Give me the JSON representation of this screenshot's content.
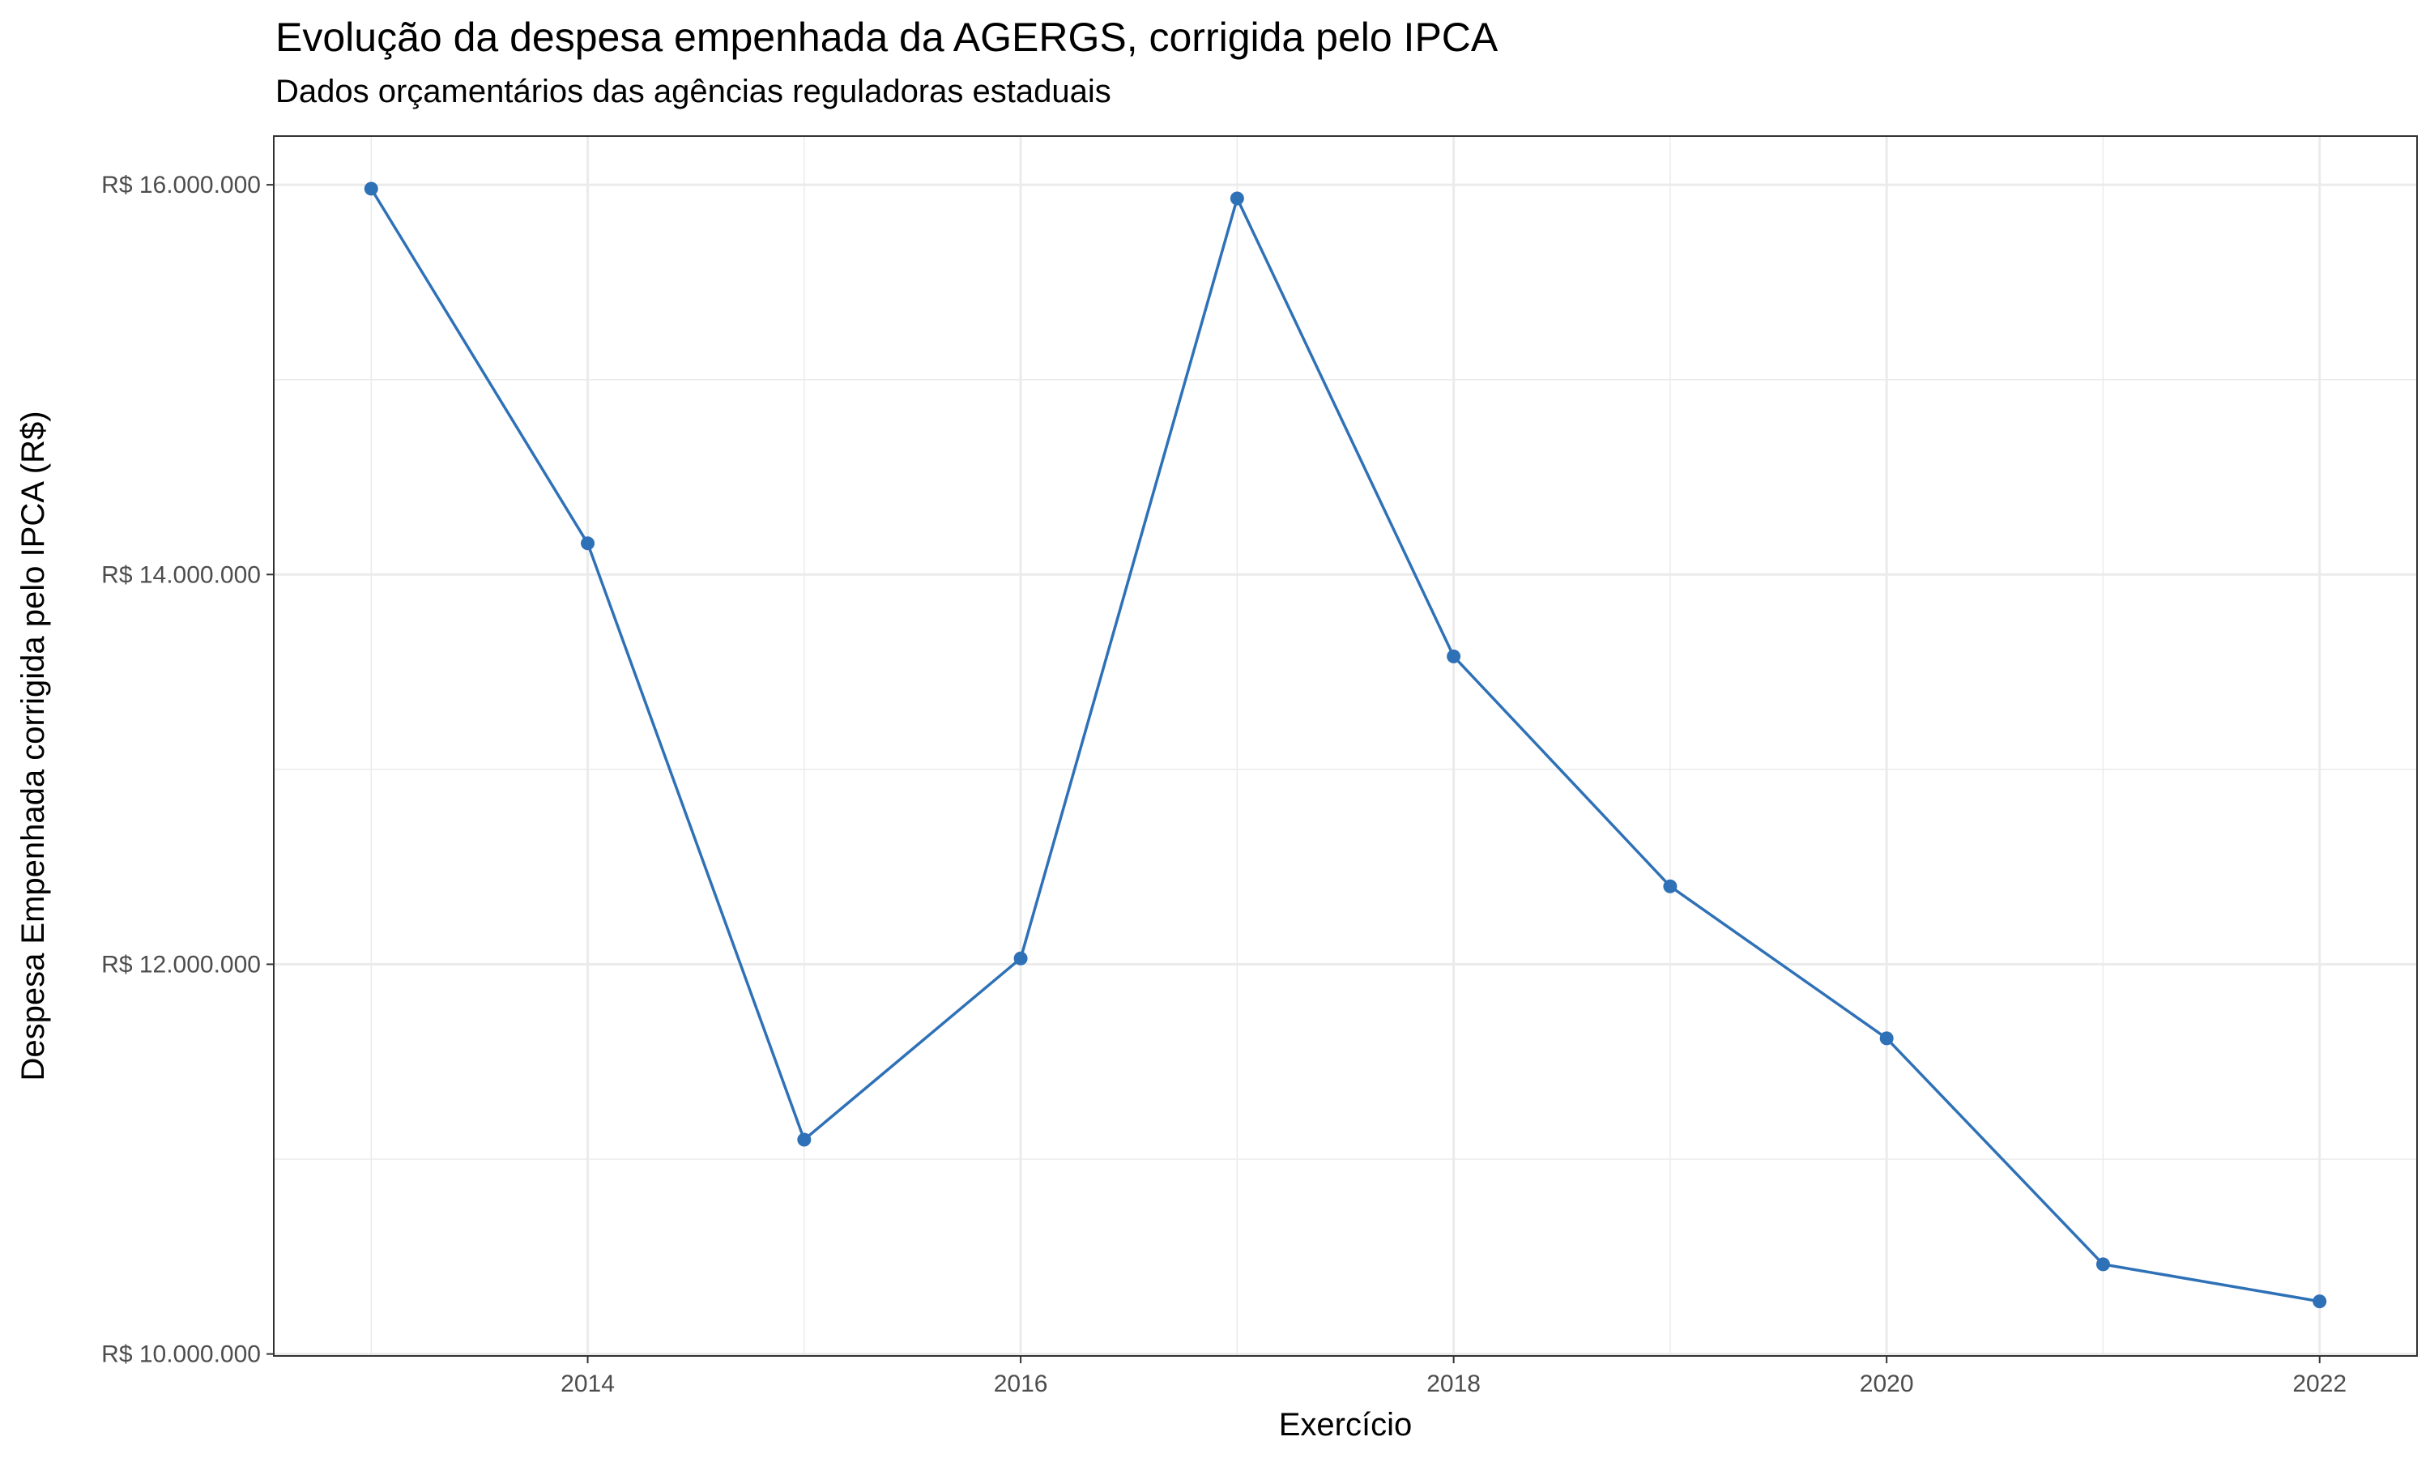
{
  "chart_data": {
    "type": "line",
    "title": "Evolução da despesa empenhada da AGERGS, corrigida pelo IPCA",
    "subtitle": "Dados orçamentários das agências reguladoras estaduais",
    "xlabel": "Exercício",
    "ylabel": "Despesa Empenhada corrigida pelo IPCA (R$)",
    "x": [
      2013,
      2014,
      2015,
      2016,
      2017,
      2018,
      2019,
      2020,
      2021,
      2022
    ],
    "y": [
      15980000,
      14160000,
      11100000,
      12030000,
      15930000,
      13580000,
      12400000,
      11620000,
      10460000,
      10270000
    ],
    "xlim": [
      2012.55,
      2022.45
    ],
    "ylim": [
      9990000,
      16250000
    ],
    "x_ticks": [
      2014,
      2016,
      2018,
      2020,
      2022
    ],
    "x_tick_labels": [
      "2014",
      "2016",
      "2018",
      "2020",
      "2022"
    ],
    "y_ticks": [
      10000000,
      12000000,
      14000000,
      16000000
    ],
    "y_tick_labels": [
      "R$ 10.000.000",
      "R$ 12.000.000",
      "R$ 14.000.000",
      "R$ 16.000.000"
    ],
    "grid": true,
    "legend": "none",
    "series_color": "#2f71b7",
    "grid_color": "#ebebeb",
    "panel_border_color": "#333333"
  }
}
